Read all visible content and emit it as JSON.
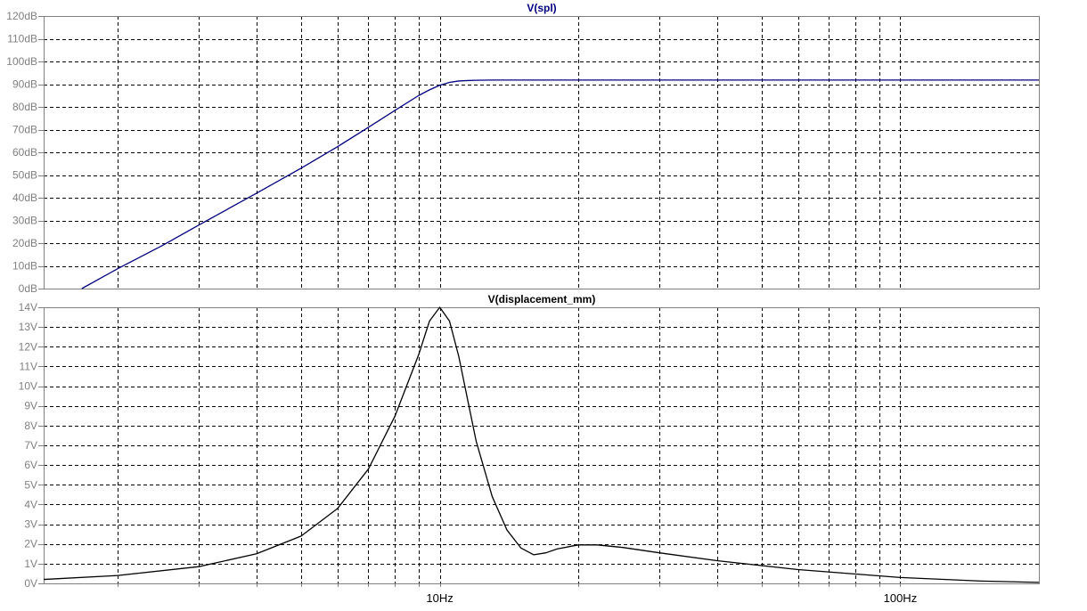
{
  "chart_data": [
    {
      "type": "line",
      "title": "V(spl)",
      "x_scale": "log",
      "xlim": [
        1.38,
        200
      ],
      "ylim": [
        0,
        120
      ],
      "y_ticks": [
        {
          "value": 0,
          "label": "0dB"
        },
        {
          "value": 10,
          "label": "10dB"
        },
        {
          "value": 20,
          "label": "20dB"
        },
        {
          "value": 30,
          "label": "30dB"
        },
        {
          "value": 40,
          "label": "40dB"
        },
        {
          "value": 50,
          "label": "50dB"
        },
        {
          "value": 60,
          "label": "60dB"
        },
        {
          "value": 70,
          "label": "70dB"
        },
        {
          "value": 80,
          "label": "80dB"
        },
        {
          "value": 90,
          "label": "90dB"
        },
        {
          "value": 100,
          "label": "100dB"
        },
        {
          "value": 110,
          "label": "110dB"
        },
        {
          "value": 120,
          "label": "120dB"
        }
      ],
      "grid": true,
      "series": [
        {
          "name": "V(spl)",
          "color": "#000080",
          "x": [
            1.67,
            2,
            2.5,
            3,
            3.5,
            4,
            5,
            6,
            7,
            8,
            9,
            9.5,
            10,
            10.5,
            11,
            11.5,
            12,
            13,
            15,
            20,
            50,
            100,
            200
          ],
          "y": [
            0,
            8.8,
            19,
            28,
            35.5,
            42,
            53,
            62.5,
            71,
            78.5,
            85,
            87.5,
            89.5,
            90.8,
            91.4,
            91.6,
            91.7,
            91.8,
            91.8,
            91.8,
            91.8,
            91.8,
            91.8
          ]
        }
      ]
    },
    {
      "type": "line",
      "title": "V(displacement_mm)",
      "x_scale": "log",
      "xlim": [
        1.38,
        200
      ],
      "ylim": [
        0,
        14
      ],
      "y_ticks": [
        {
          "value": 0,
          "label": "0V"
        },
        {
          "value": 1,
          "label": "1V"
        },
        {
          "value": 2,
          "label": "2V"
        },
        {
          "value": 3,
          "label": "3V"
        },
        {
          "value": 4,
          "label": "4V"
        },
        {
          "value": 5,
          "label": "5V"
        },
        {
          "value": 6,
          "label": "6V"
        },
        {
          "value": 7,
          "label": "7V"
        },
        {
          "value": 8,
          "label": "8V"
        },
        {
          "value": 9,
          "label": "9V"
        },
        {
          "value": 10,
          "label": "10V"
        },
        {
          "value": 11,
          "label": "11V"
        },
        {
          "value": 12,
          "label": "12V"
        },
        {
          "value": 13,
          "label": "13V"
        },
        {
          "value": 14,
          "label": "14V"
        }
      ],
      "x_ticks": [
        {
          "value": 10,
          "label": "10Hz"
        },
        {
          "value": 100,
          "label": "100Hz"
        }
      ],
      "grid": true,
      "series": [
        {
          "name": "V(displacement_mm)",
          "color": "#000000",
          "x": [
            1.38,
            2,
            3,
            4,
            5,
            6,
            7,
            8,
            9,
            9.5,
            10,
            10.5,
            11,
            11.5,
            12,
            13,
            14,
            15,
            16,
            17,
            18,
            20,
            22,
            25,
            30,
            40,
            60,
            100,
            150,
            200
          ],
          "y": [
            0.2,
            0.4,
            0.85,
            1.5,
            2.4,
            3.8,
            5.8,
            8.5,
            11.6,
            13.3,
            14.0,
            13.3,
            11.5,
            9.3,
            7.2,
            4.4,
            2.7,
            1.8,
            1.45,
            1.55,
            1.75,
            1.95,
            1.95,
            1.82,
            1.55,
            1.15,
            0.7,
            0.3,
            0.12,
            0.05
          ]
        }
      ]
    }
  ]
}
